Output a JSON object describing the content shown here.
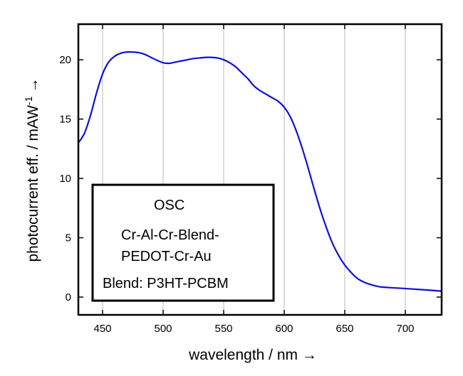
{
  "chart_data": {
    "type": "line",
    "title": "",
    "xlabel": "wavelength / nm →",
    "ylabel_main": "photocurrent eff. / mAW",
    "ylabel_sup": "-1",
    "ylabel_arrow": "→",
    "xlim": [
      430,
      730
    ],
    "ylim": [
      -1.5,
      23
    ],
    "x_ticks": [
      450,
      500,
      550,
      600,
      650,
      700
    ],
    "y_ticks": [
      0,
      5,
      10,
      15,
      20
    ],
    "x_tick_labels": [
      "450",
      "500",
      "550",
      "600",
      "650",
      "700"
    ],
    "y_tick_labels": [
      "0",
      "5",
      "10",
      "15",
      "20"
    ],
    "grid": "vertical",
    "line_color": "#1010d8",
    "annotation_box": {
      "placement": "bottom-left",
      "lines": [
        "OSC",
        "Cr-Al-Cr-Blend-",
        "PEDOT-Cr-Au",
        "Blend: P3HT-PCBM"
      ]
    },
    "series": [
      {
        "x": [
          430,
          435,
          440,
          445,
          450,
          455,
          460,
          465,
          470,
          475,
          480,
          485,
          490,
          495,
          500,
          505,
          510,
          515,
          520,
          525,
          530,
          535,
          540,
          545,
          550,
          555,
          560,
          565,
          570,
          575,
          580,
          585,
          590,
          595,
          600,
          605,
          610,
          615,
          620,
          625,
          630,
          635,
          640,
          645,
          650,
          655,
          660,
          665,
          670,
          675,
          680,
          690,
          700,
          710,
          720,
          730
        ],
        "y": [
          13.0,
          13.8,
          15.3,
          17.2,
          18.8,
          19.8,
          20.3,
          20.55,
          20.65,
          20.65,
          20.6,
          20.45,
          20.2,
          19.95,
          19.75,
          19.7,
          19.8,
          19.9,
          20.0,
          20.1,
          20.15,
          20.2,
          20.2,
          20.15,
          20.0,
          19.75,
          19.4,
          18.9,
          18.4,
          17.8,
          17.4,
          17.1,
          16.8,
          16.5,
          16.0,
          15.2,
          14.0,
          12.5,
          10.8,
          9.0,
          7.3,
          5.8,
          4.5,
          3.5,
          2.7,
          2.1,
          1.6,
          1.3,
          1.1,
          0.95,
          0.85,
          0.78,
          0.72,
          0.65,
          0.58,
          0.5
        ]
      }
    ]
  }
}
